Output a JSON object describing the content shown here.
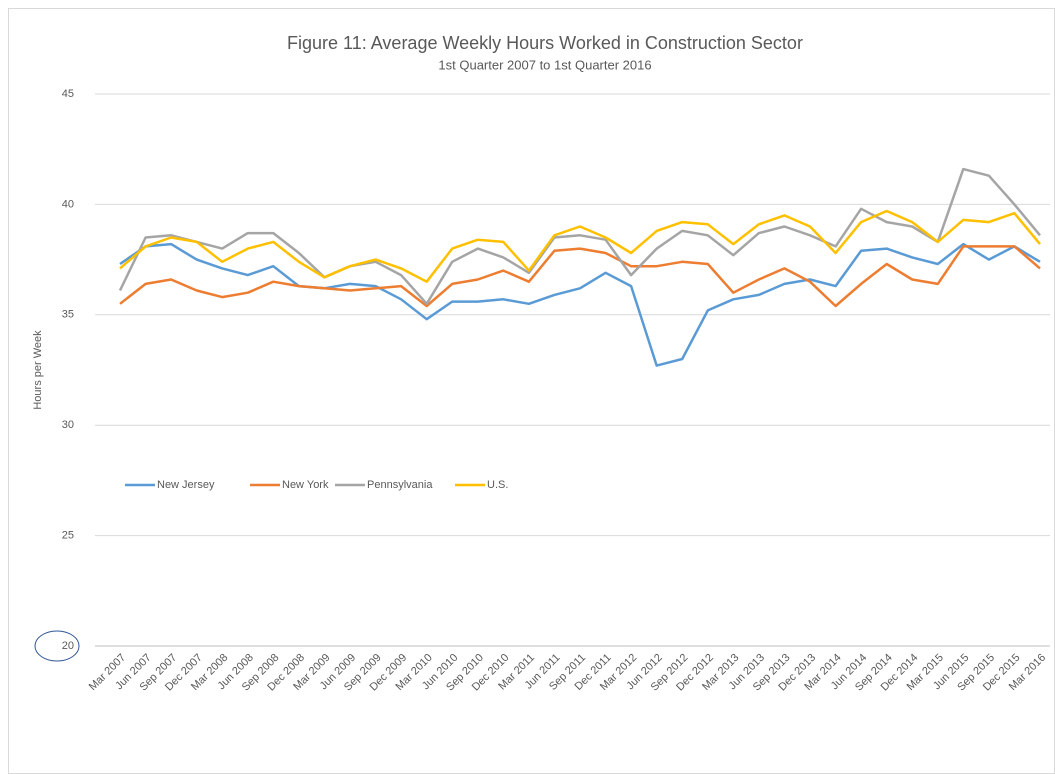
{
  "chart_data": {
    "type": "line",
    "title": "Figure 11: Average Weekly Hours Worked in Construction Sector",
    "subtitle": "1st Quarter 2007 to 1st Quarter 2016",
    "y_label": "Hours per Week",
    "categories": [
      "Mar 2007",
      "Jun 2007",
      "Sep 2007",
      "Dec 2007",
      "Mar 2008",
      "Jun 2008",
      "Sep 2008",
      "Dec 2008",
      "Mar 2009",
      "Jun 2009",
      "Sep 2009",
      "Dec 2009",
      "Mar 2010",
      "Jun 2010",
      "Sep 2010",
      "Dec 2010",
      "Mar 2011",
      "Jun 2011",
      "Sep 2011",
      "Dec 2011",
      "Mar 2012",
      "Jun 2012",
      "Sep 2012",
      "Dec 2012",
      "Mar 2013",
      "Jun 2013",
      "Sep 2013",
      "Dec 2013",
      "Mar 2014",
      "Jun 2014",
      "Sep 2014",
      "Dec 2014",
      "Mar 2015",
      "Jun 2015",
      "Sep 2015",
      "Dec 2015",
      "Mar 2016"
    ],
    "series": [
      {
        "name": "New Jersey",
        "color": "#5b9bd5",
        "values": [
          37.3,
          38.1,
          38.2,
          37.5,
          37.1,
          36.8,
          37.2,
          36.3,
          36.2,
          36.4,
          36.3,
          35.7,
          34.8,
          35.6,
          35.6,
          35.7,
          35.5,
          35.9,
          36.2,
          36.9,
          36.3,
          32.7,
          33.0,
          35.2,
          35.7,
          35.9,
          36.4,
          36.6,
          36.3,
          37.9,
          38.0,
          37.6,
          37.3,
          38.2,
          37.5,
          38.1,
          37.4
        ]
      },
      {
        "name": "New York",
        "color": "#ed7d31",
        "values": [
          35.5,
          36.4,
          36.6,
          36.1,
          35.8,
          36.0,
          36.5,
          36.3,
          36.2,
          36.1,
          36.2,
          36.3,
          35.4,
          36.4,
          36.6,
          37.0,
          36.5,
          37.9,
          38.0,
          37.8,
          37.2,
          37.2,
          37.4,
          37.3,
          36.0,
          36.6,
          37.1,
          36.5,
          35.4,
          36.4,
          37.3,
          36.6,
          36.4,
          38.1,
          38.1,
          38.1,
          37.1
        ]
      },
      {
        "name": "Pennsylvania",
        "color": "#a5a5a5",
        "values": [
          36.1,
          38.5,
          38.6,
          38.3,
          38.0,
          38.7,
          38.7,
          37.8,
          36.7,
          37.2,
          37.4,
          36.8,
          35.5,
          37.4,
          38.0,
          37.6,
          36.9,
          38.5,
          38.6,
          38.4,
          36.8,
          38.0,
          38.8,
          38.6,
          37.7,
          38.7,
          39.0,
          38.6,
          38.1,
          39.8,
          39.2,
          39.0,
          38.3,
          41.6,
          41.3,
          40.0,
          38.6
        ]
      },
      {
        "name": "U.S.",
        "color": "#ffc000",
        "values": [
          37.1,
          38.1,
          38.5,
          38.3,
          37.4,
          38.0,
          38.3,
          37.4,
          36.7,
          37.2,
          37.5,
          37.1,
          36.5,
          38.0,
          38.4,
          38.3,
          37.0,
          38.6,
          39.0,
          38.5,
          37.8,
          38.8,
          39.2,
          39.1,
          38.2,
          39.1,
          39.5,
          39.0,
          37.8,
          39.2,
          39.7,
          39.2,
          38.3,
          39.3,
          39.2,
          39.6,
          38.2
        ]
      }
    ],
    "ylim": [
      20,
      45
    ],
    "yticks": [
      20,
      25,
      30,
      35,
      40,
      45
    ],
    "grid": true,
    "legend": "left"
  }
}
